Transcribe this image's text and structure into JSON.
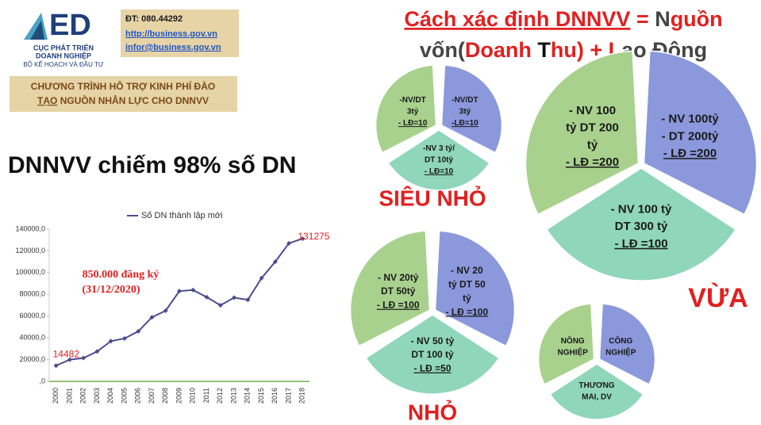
{
  "header": {
    "logo_text": "ED",
    "org_name_line1": "CỤC PHÁT TRIỂN",
    "org_name_line2": "DOANH NGHIỆP",
    "ministry": "BỘ KẾ HOẠCH VÀ ĐẦU TƯ",
    "phone": "ĐT: 080.44292",
    "website": "http://business.gov.vn",
    "email": "infor@business.gov.vn",
    "program_line1": "CHƯƠNG TRÌNH HỖ TRỢ KINH PHÍ ĐÀO",
    "program_line2_underlined": "TẠO",
    "program_line2_rest": " NGUỒN NHÂN LỰC CHO DNNVV"
  },
  "headline": "DNNVV chiếm 98% số DN",
  "definition": {
    "line1": [
      "Cách xác định DNNVV",
      " = ",
      "N",
      "guồn"
    ],
    "line2": [
      "vốn(",
      "Doanh ",
      "T",
      "hu) + ",
      "L",
      "ao Động"
    ]
  },
  "groups": [
    {
      "label": "SIÊU NHỎ",
      "left": [
        "-NV/DT",
        "3tỷ",
        "- LĐ=10"
      ],
      "right": [
        "-NV/DT",
        "3tỷ",
        "-LĐ=10"
      ],
      "bottom": [
        "-NV 3 tỷ/",
        "DT 10tỷ",
        "- LĐ=10"
      ]
    },
    {
      "label": "VỪA",
      "left": [
        "- NV 100",
        "tỷ DT 200",
        "tỷ",
        "- LĐ =200"
      ],
      "right": [
        "- NV 100tỷ",
        "- DT 200tỷ",
        "- LĐ =200"
      ],
      "bottom": [
        "- NV 100 tỷ",
        "DT 300 tỷ",
        "- LĐ =100"
      ]
    },
    {
      "label": "NHỎ",
      "left": [
        "- NV 20tỷ",
        "DT 50tỷ",
        "- LĐ =100"
      ],
      "right": [
        "- NV 20",
        "tỷ DT 50",
        "tỷ",
        "- LĐ =100"
      ],
      "bottom": [
        "- NV 50 tỷ",
        "DT 100 tỷ",
        "- LĐ =50"
      ]
    },
    {
      "left": [
        "NÔNG",
        "NGHIỆP"
      ],
      "right": [
        "CÔNG",
        "NGHIỆP"
      ],
      "bottom": [
        "THƯƠNG",
        "MAI, DV"
      ]
    }
  ],
  "chart_data": {
    "type": "line",
    "categories": [
      "2000",
      "2001",
      "2002",
      "2003",
      "2004",
      "2005",
      "2006",
      "2007",
      "2008",
      "2009",
      "2010",
      "2011",
      "2012",
      "2013",
      "2014",
      "2015",
      "2016",
      "2017",
      "2018"
    ],
    "series": [
      {
        "name": "Số DN thành lập mới",
        "color": "#4b4b8f",
        "values": [
          14482,
          20000,
          21500,
          27500,
          37000,
          39500,
          46000,
          59000,
          65000,
          83000,
          84000,
          77500,
          70000,
          77000,
          75000,
          95000,
          110000,
          127000,
          131275
        ]
      }
    ],
    "ylim": [
      0,
      140000
    ],
    "yticks": [
      {
        "value": 0,
        "label": ",0"
      },
      {
        "value": 20000,
        "label": "20000,0"
      },
      {
        "value": 40000,
        "label": "40000,0"
      },
      {
        "value": 60000,
        "label": "60000,0"
      },
      {
        "value": 80000,
        "label": "80000,0"
      },
      {
        "value": 100000,
        "label": "100000,0"
      },
      {
        "value": 120000,
        "label": "120000,0"
      },
      {
        "value": 140000,
        "label": "140000,0"
      }
    ],
    "annotation_line1": "850.000 đăng ký",
    "annotation_line2": "(31/12/2020)",
    "legend": "top"
  }
}
